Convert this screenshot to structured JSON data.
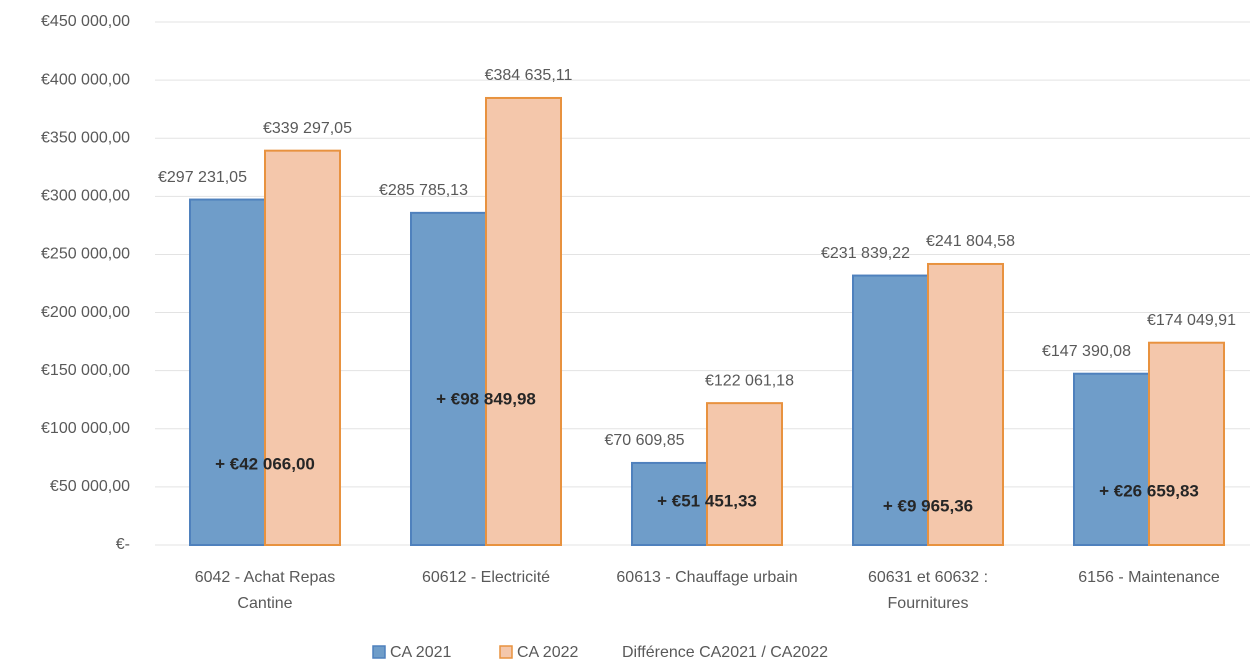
{
  "chart_data": {
    "type": "bar",
    "categories": [
      "6042 - Achat Repas Cantine",
      "60612 - Electricité",
      "60613 - Chauffage urbain",
      "60631 et 60632 : Fournitures",
      "6156 - Maintenance"
    ],
    "series": [
      {
        "name": "CA 2021",
        "color": "#6f9dc9",
        "stroke": "#4f81bd",
        "values": [
          297231.05,
          285785.13,
          70609.85,
          231839.22,
          147390.08
        ],
        "value_labels": [
          "€297 231,05",
          "€285 785,13",
          "€70 609,85",
          "€231 839,22",
          "€147 390,08"
        ]
      },
      {
        "name": "CA 2022",
        "color": "#f4c7ab",
        "stroke": "#e8923f",
        "values": [
          339297.05,
          384635.11,
          122061.18,
          241804.58,
          174049.91
        ],
        "value_labels": [
          "€339 297,05",
          "€384 635,11",
          "€122 061,18",
          "€241 804,58",
          "€174 049,91"
        ]
      },
      {
        "name": "Différence CA2021 / CA2022",
        "values": [
          42066.0,
          98849.98,
          51451.33,
          9965.36,
          26659.83
        ],
        "value_labels": [
          "+ €42 066,00",
          "+ €98 849,98",
          "+ €51 451,33",
          "+ €9 965,36",
          "+ €26 659,83"
        ]
      }
    ],
    "ylim": [
      0,
      450000
    ],
    "yticks": [
      {
        "value": 0,
        "label": "€-"
      },
      {
        "value": 50000,
        "label": "€50 000,00"
      },
      {
        "value": 100000,
        "label": "€100 000,00"
      },
      {
        "value": 150000,
        "label": "€150 000,00"
      },
      {
        "value": 200000,
        "label": "€200 000,00"
      },
      {
        "value": 250000,
        "label": "€250 000,00"
      },
      {
        "value": 300000,
        "label": "€300 000,00"
      },
      {
        "value": 350000,
        "label": "€350 000,00"
      },
      {
        "value": 400000,
        "label": "€400 000,00"
      },
      {
        "value": 450000,
        "label": "€450 000,00"
      }
    ],
    "grid": true
  }
}
